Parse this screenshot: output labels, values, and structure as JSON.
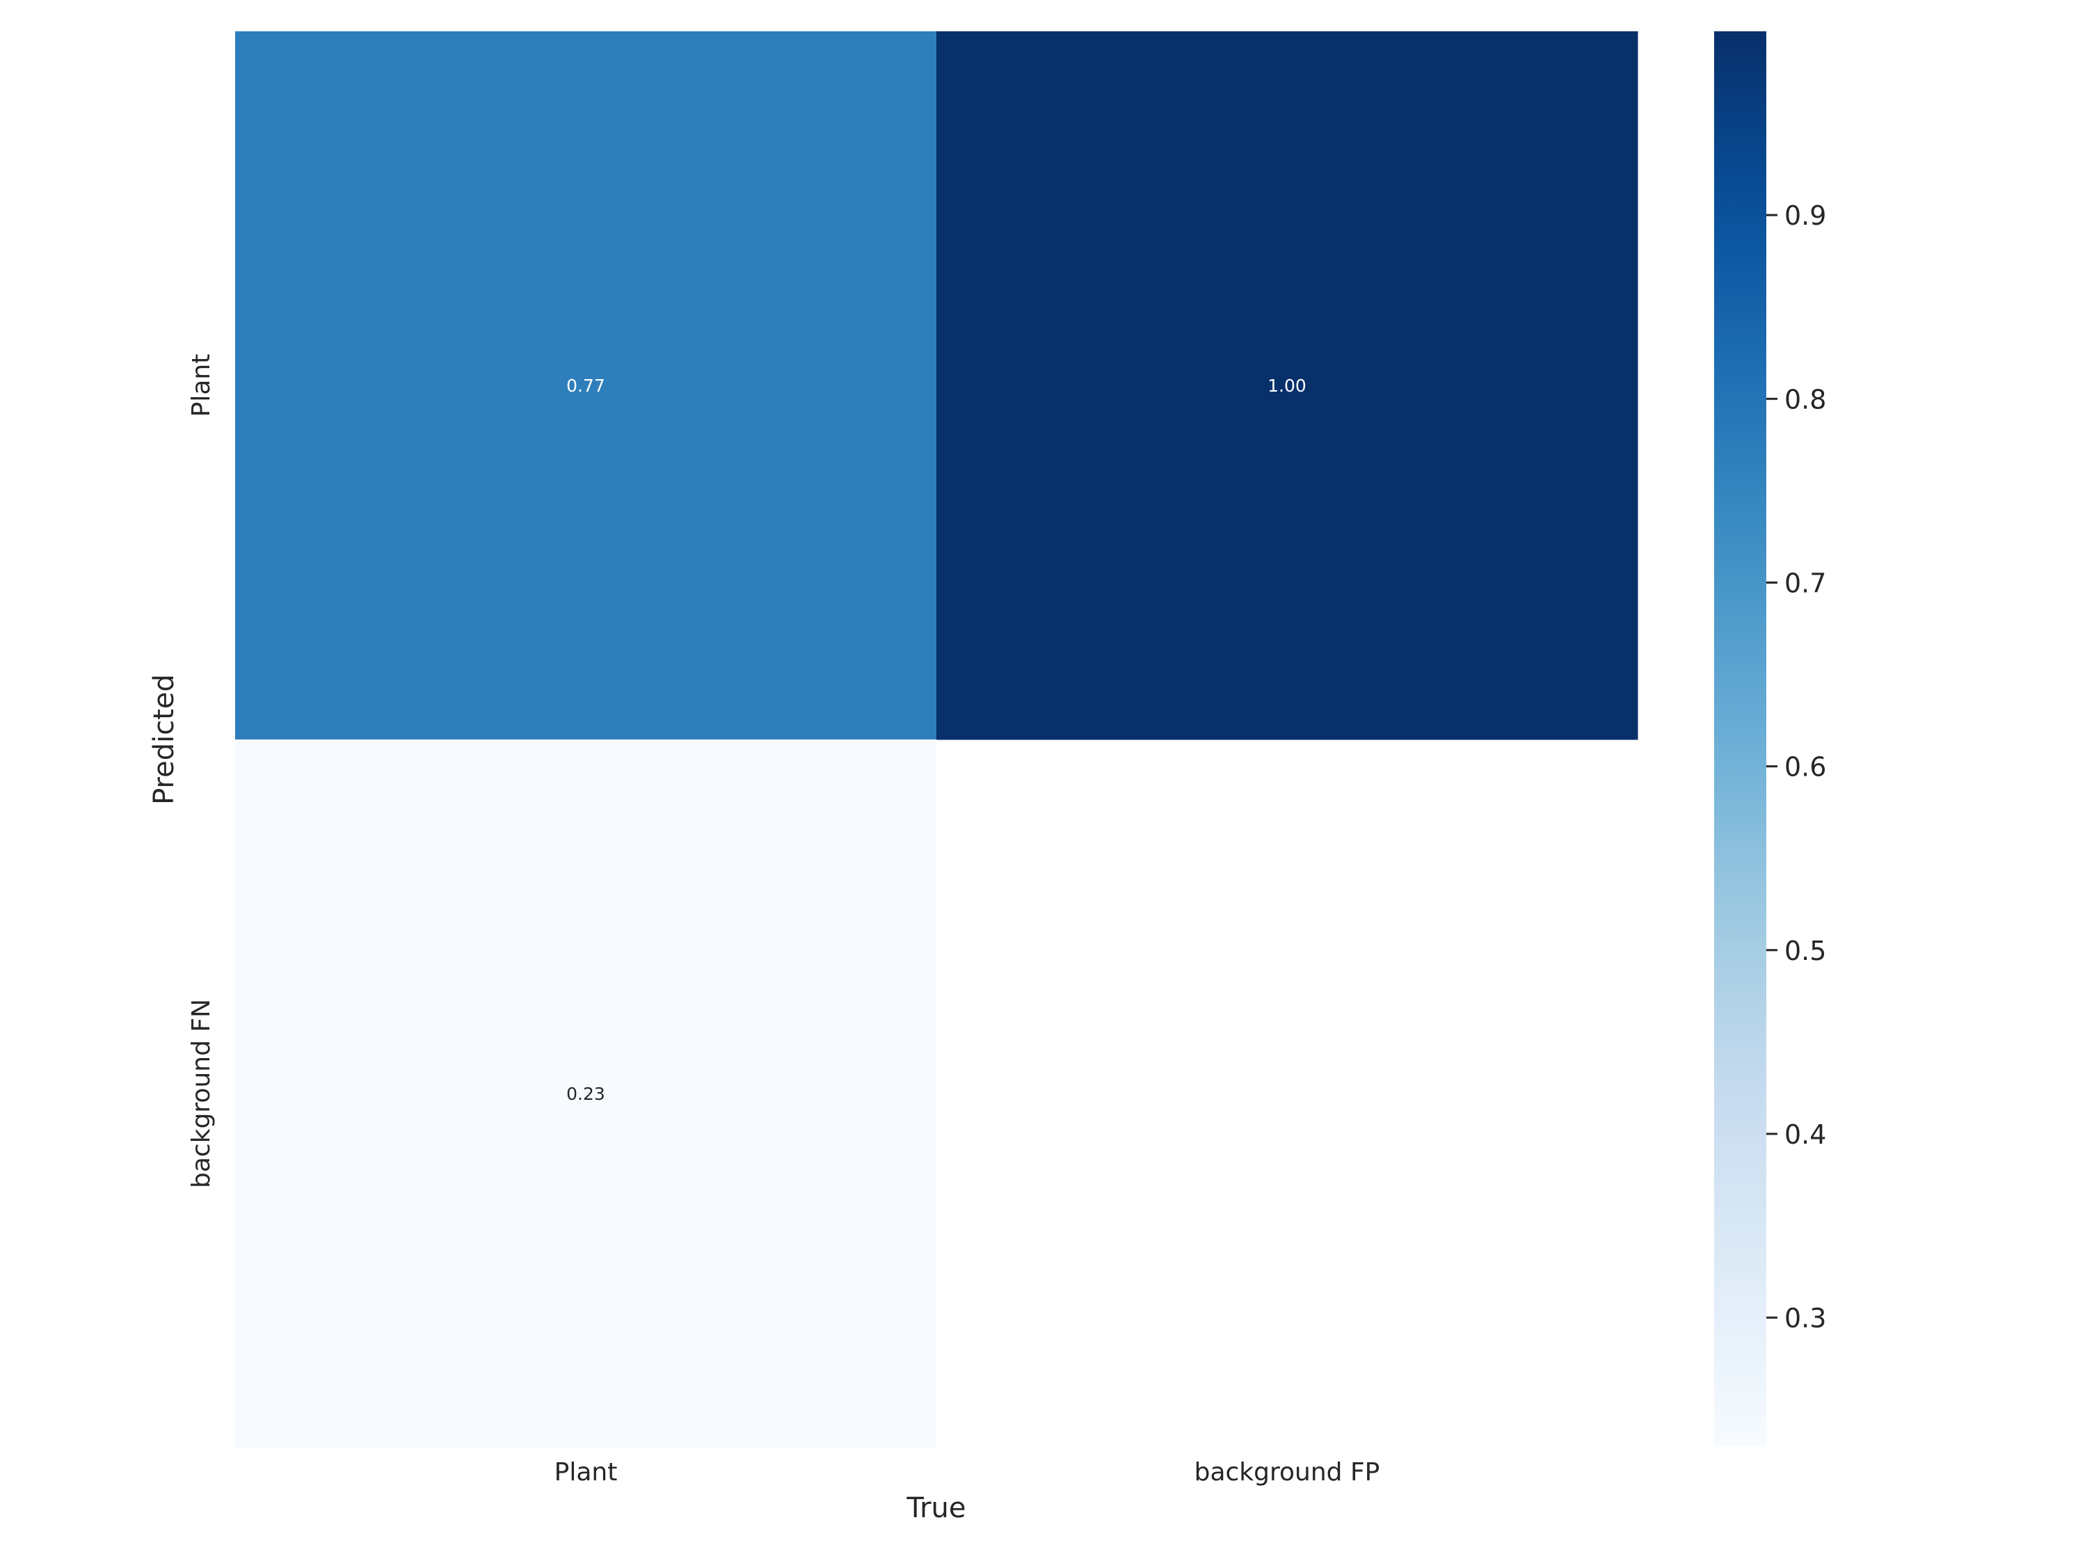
{
  "chart_data": {
    "type": "heatmap",
    "title": "",
    "xlabel": "True",
    "ylabel": "Predicted",
    "x_categories": [
      "Plant",
      "background FP"
    ],
    "y_categories": [
      "Plant",
      "background FN"
    ],
    "values": [
      [
        0.77,
        1.0
      ],
      [
        0.23,
        null
      ]
    ],
    "annotations": [
      [
        "0.77",
        "1.00"
      ],
      [
        "0.23",
        ""
      ]
    ],
    "colormap": "Blues",
    "colorbar": {
      "range": [
        0.23,
        1.0
      ],
      "ticks": [
        0.3,
        0.4,
        0.5,
        0.6,
        0.7,
        0.8,
        0.9
      ],
      "tick_labels": [
        "0.3",
        "0.4",
        "0.5",
        "0.6",
        "0.7",
        "0.8",
        "0.9"
      ]
    },
    "colors": {
      "blues_stops": [
        "#f7fbff",
        "#deebf7",
        "#c6dbef",
        "#9ecae1",
        "#6baed6",
        "#4292c6",
        "#2171b5",
        "#08519c",
        "#08306b"
      ],
      "text": "#262626"
    }
  }
}
